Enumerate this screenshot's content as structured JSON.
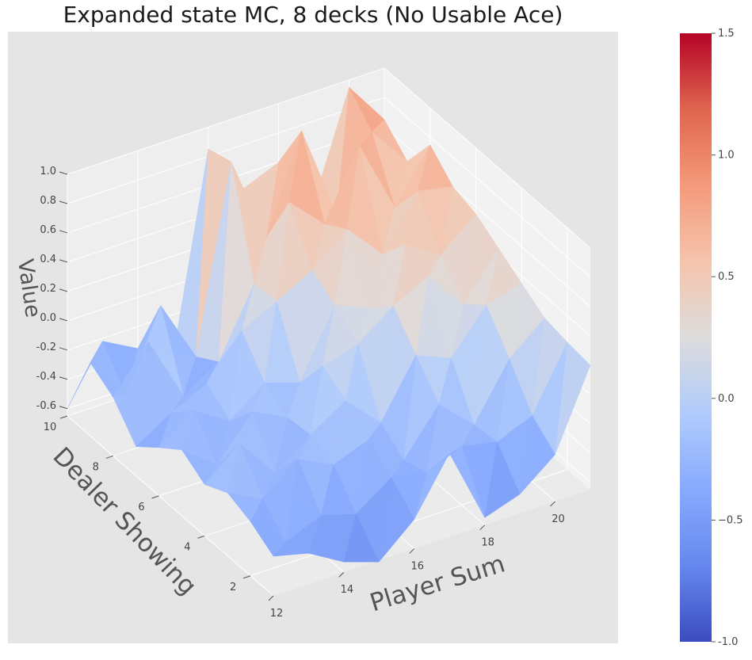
{
  "chart_data": {
    "type": "surface",
    "title": "Expanded state MC, 8 decks (No Usable Ace)",
    "xlabel": "Player Sum",
    "ylabel": "Dealer Showing",
    "zlabel": "Value",
    "x": [
      12,
      13,
      14,
      15,
      16,
      17,
      18,
      19,
      20,
      21
    ],
    "y": [
      1,
      2,
      3,
      4,
      5,
      6,
      7,
      8,
      9,
      10
    ],
    "x_ticks": [
      "12",
      "14",
      "16",
      "18",
      "20"
    ],
    "y_ticks": [
      "2",
      "4",
      "6",
      "8",
      "10"
    ],
    "z_ticks": [
      "-0.6",
      "-0.4",
      "-0.2",
      "0.0",
      "0.2",
      "0.4",
      "0.6",
      "0.8",
      "1.0"
    ],
    "xlim": [
      12,
      21
    ],
    "ylim": [
      1,
      10
    ],
    "zlim": [
      -0.65,
      1.0
    ],
    "z": [
      [
        -0.38,
        -0.44,
        -0.58,
        -0.66,
        -0.45,
        -0.08,
        -0.6,
        -0.52,
        -0.33,
        0.2
      ],
      [
        -0.28,
        -0.5,
        -0.4,
        -0.47,
        -0.3,
        -0.35,
        -0.25,
        -0.3,
        -0.2,
        0.22
      ],
      [
        -0.22,
        -0.34,
        -0.15,
        -0.27,
        -0.18,
        -0.4,
        -0.1,
        -0.32,
        0.05,
        0.25
      ],
      [
        -0.3,
        -0.1,
        -0.38,
        -0.2,
        -0.05,
        -0.28,
        0.1,
        0.0,
        0.28,
        0.35
      ],
      [
        -0.2,
        -0.38,
        -0.1,
        -0.22,
        0.05,
        0.12,
        0.3,
        0.42,
        0.15,
        0.45
      ],
      [
        -0.32,
        -0.15,
        -0.3,
        -0.12,
        -0.2,
        0.25,
        0.15,
        0.5,
        0.35,
        0.55
      ],
      [
        -0.45,
        -0.3,
        -0.18,
        0.1,
        0.22,
        0.35,
        0.55,
        0.3,
        0.65,
        0.6
      ],
      [
        -0.25,
        0.05,
        -0.4,
        -0.25,
        0.2,
        0.68,
        0.45,
        0.9,
        0.4,
        0.75
      ],
      [
        -0.15,
        -0.45,
        0.08,
        -0.35,
        0.9,
        0.3,
        0.95,
        0.3,
        0.78,
        0.5
      ],
      [
        -0.6,
        -0.22,
        -0.35,
        -0.48,
        0.85,
        0.5,
        0.6,
        0.25,
        0.95,
        0.65
      ]
    ],
    "colorbar": {
      "colormap": "coolwarm",
      "min": -1.0,
      "max": 1.5,
      "ticks": [
        "-1.0",
        "−0.5",
        "0.0",
        "0.5",
        "1.0",
        "1.5"
      ],
      "tick_values": [
        -1.0,
        -0.5,
        0.0,
        0.5,
        1.0,
        1.5
      ]
    },
    "grid": true
  }
}
